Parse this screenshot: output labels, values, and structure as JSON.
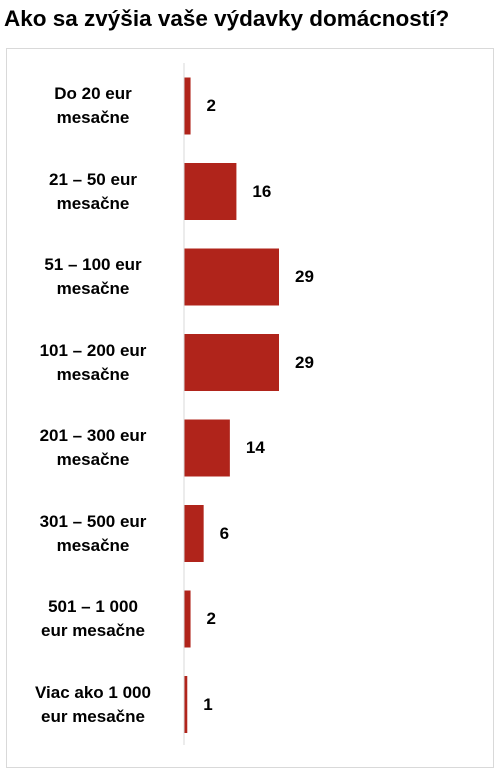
{
  "title": "Ako sa zvýšia vaše výdavky domácností?",
  "colors": {
    "bar": "#b0241b",
    "axis": "#d9d9d9"
  },
  "chart_data": {
    "type": "bar",
    "orientation": "horizontal",
    "title": "Ako sa zvýšia vaše výdavky domácností?",
    "categories": [
      [
        "Do 20 eur",
        "mesačne"
      ],
      [
        "21 – 50 eur",
        "mesačne"
      ],
      [
        "51 – 100 eur",
        "mesačne"
      ],
      [
        "101 – 200 eur",
        "mesačne"
      ],
      [
        "201 – 300 eur",
        "mesačne"
      ],
      [
        "301 – 500 eur",
        "mesačne"
      ],
      [
        "501 – 1 000",
        "eur mesačne"
      ],
      [
        "Viac ako 1 000",
        "eur mesačne"
      ]
    ],
    "values": [
      2,
      16,
      29,
      29,
      14,
      6,
      2,
      1
    ],
    "xlim": [
      0,
      29
    ],
    "grid": false,
    "legend": "none"
  }
}
